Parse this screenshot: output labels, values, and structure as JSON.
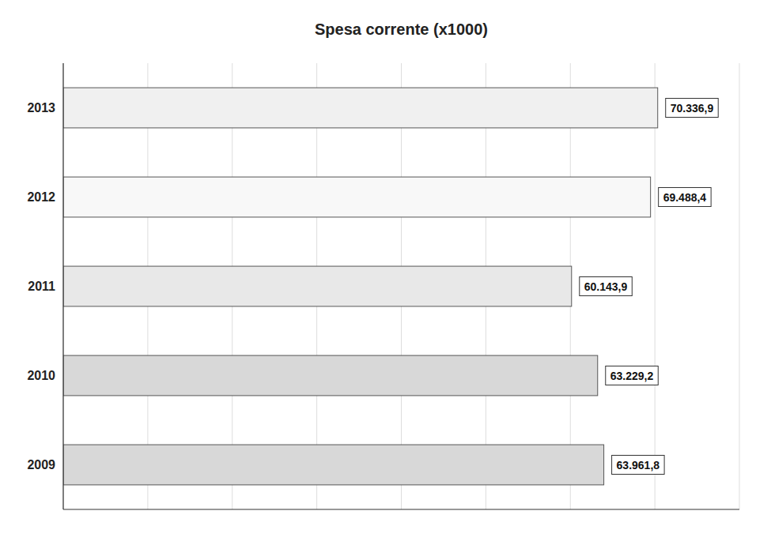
{
  "chart_data": {
    "type": "bar",
    "orientation": "horizontal",
    "title": "Spesa corrente (x1000)",
    "categories": [
      "2009",
      "2010",
      "2011",
      "2012",
      "2013"
    ],
    "values": [
      63961.8,
      63229.2,
      60143.9,
      69488.4,
      70336.9
    ],
    "value_labels": [
      "63.961,8",
      "63.229,2",
      "60.143,9",
      "69.488,4",
      "70.336,9"
    ],
    "colors": [
      "#d8d8d8",
      "#d8d8d8",
      "#e8e8e8",
      "#f8f8f8",
      "#f0f0f0"
    ],
    "xlim": [
      0,
      80000
    ],
    "xticks": [
      0,
      10000,
      20000,
      30000,
      40000,
      50000,
      60000,
      70000,
      80000
    ],
    "grid": true,
    "tick_labels": "y",
    "data_labels": true
  }
}
